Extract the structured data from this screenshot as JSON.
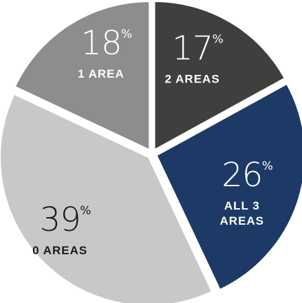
{
  "chart_data": {
    "type": "pie",
    "title": "",
    "unit": "%",
    "slices": [
      {
        "name": "2 AREAS",
        "label_lines": [
          "2 AREAS"
        ],
        "value": 17,
        "color": "#3f3f3f",
        "text_color": "#ffffff"
      },
      {
        "name": "ALL 3 AREAS",
        "label_lines": [
          "ALL 3",
          "AREAS"
        ],
        "value": 26,
        "color": "#1d3a66",
        "text_color": "#ffffff"
      },
      {
        "name": "0 AREAS",
        "label_lines": [
          "0 AREAS"
        ],
        "value": 39,
        "color": "#c8c8c8",
        "text_color": "#1a1a1a"
      },
      {
        "name": "1 AREA",
        "label_lines": [
          "1 AREA"
        ],
        "value": 18,
        "color": "#8e8c8d",
        "text_color": "#ffffff"
      }
    ],
    "start_angle_deg": 0,
    "direction": "clockwise",
    "legend": "none"
  }
}
